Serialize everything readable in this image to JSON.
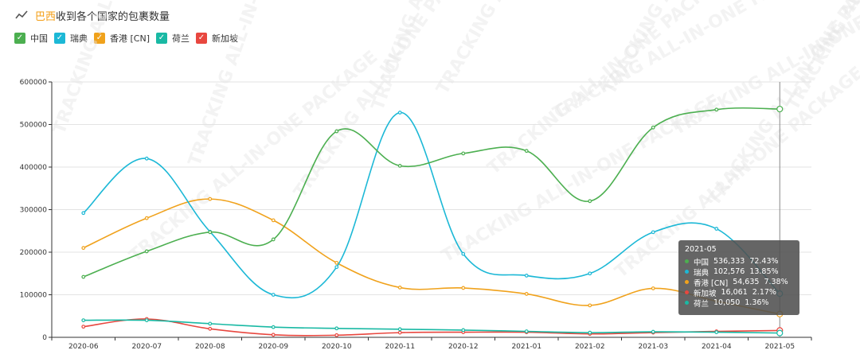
{
  "header": {
    "title_prefix": "巴西",
    "title_rest": "收到各个国家的包裹数量",
    "icon": "trend-line-icon"
  },
  "legend": [
    {
      "name": "中国",
      "color": "#4caf50"
    },
    {
      "name": "瑞典",
      "color": "#1cb8d6"
    },
    {
      "name": "香港 [CN]",
      "color": "#f0a21c"
    },
    {
      "name": "荷兰",
      "color": "#19b9a4"
    },
    {
      "name": "新加坡",
      "color": "#e8473f"
    }
  ],
  "watermark": "TRACKING ALL-IN-ONE PACKAGE",
  "chart_data": {
    "type": "line",
    "categories": [
      "2020-06",
      "2020-07",
      "2020-08",
      "2020-09",
      "2020-10",
      "2020-11",
      "2020-12",
      "2021-01",
      "2021-02",
      "2021-03",
      "2021-04",
      "2021-05"
    ],
    "ylim": [
      0,
      600000
    ],
    "yticks": [
      "0",
      "100000",
      "200000",
      "300000",
      "400000",
      "500000",
      "600000"
    ],
    "grid": true,
    "series": [
      {
        "name": "中国",
        "color": "#4caf50",
        "values": [
          142000,
          202000,
          247000,
          230000,
          484000,
          403000,
          432000,
          438000,
          320000,
          493000,
          535000,
          536333
        ]
      },
      {
        "name": "瑞典",
        "color": "#1cb8d6",
        "values": [
          292000,
          420000,
          248000,
          100000,
          165000,
          528000,
          196000,
          145000,
          150000,
          247000,
          255000,
          102576
        ]
      },
      {
        "name": "香港 [CN]",
        "color": "#f0a21c",
        "values": [
          210000,
          280000,
          325000,
          275000,
          175000,
          117000,
          116000,
          102000,
          75000,
          115000,
          85000,
          54635
        ]
      },
      {
        "name": "荷兰",
        "color": "#19b9a4",
        "values": [
          40000,
          40000,
          32000,
          24000,
          21000,
          19000,
          17000,
          14000,
          11000,
          13000,
          12000,
          10050
        ]
      },
      {
        "name": "新加坡",
        "color": "#e8473f",
        "values": [
          25000,
          43000,
          20000,
          6000,
          5000,
          11000,
          12000,
          12000,
          8000,
          11000,
          14000,
          16061
        ]
      }
    ]
  },
  "tooltip": {
    "title": "2021-05",
    "rows": [
      {
        "name": "中国",
        "value": "536,333",
        "pct": "72.43%",
        "color": "#4caf50"
      },
      {
        "name": "瑞典",
        "value": "102,576",
        "pct": "13.85%",
        "color": "#1cb8d6"
      },
      {
        "name": "香港 [CN]",
        "value": "54,635",
        "pct": "7.38%",
        "color": "#f0a21c"
      },
      {
        "name": "新加坡",
        "value": "16,061",
        "pct": "2.17%",
        "color": "#e8473f"
      },
      {
        "name": "荷兰",
        "value": "10,050",
        "pct": "1.36%",
        "color": "#19b9a4"
      }
    ]
  }
}
